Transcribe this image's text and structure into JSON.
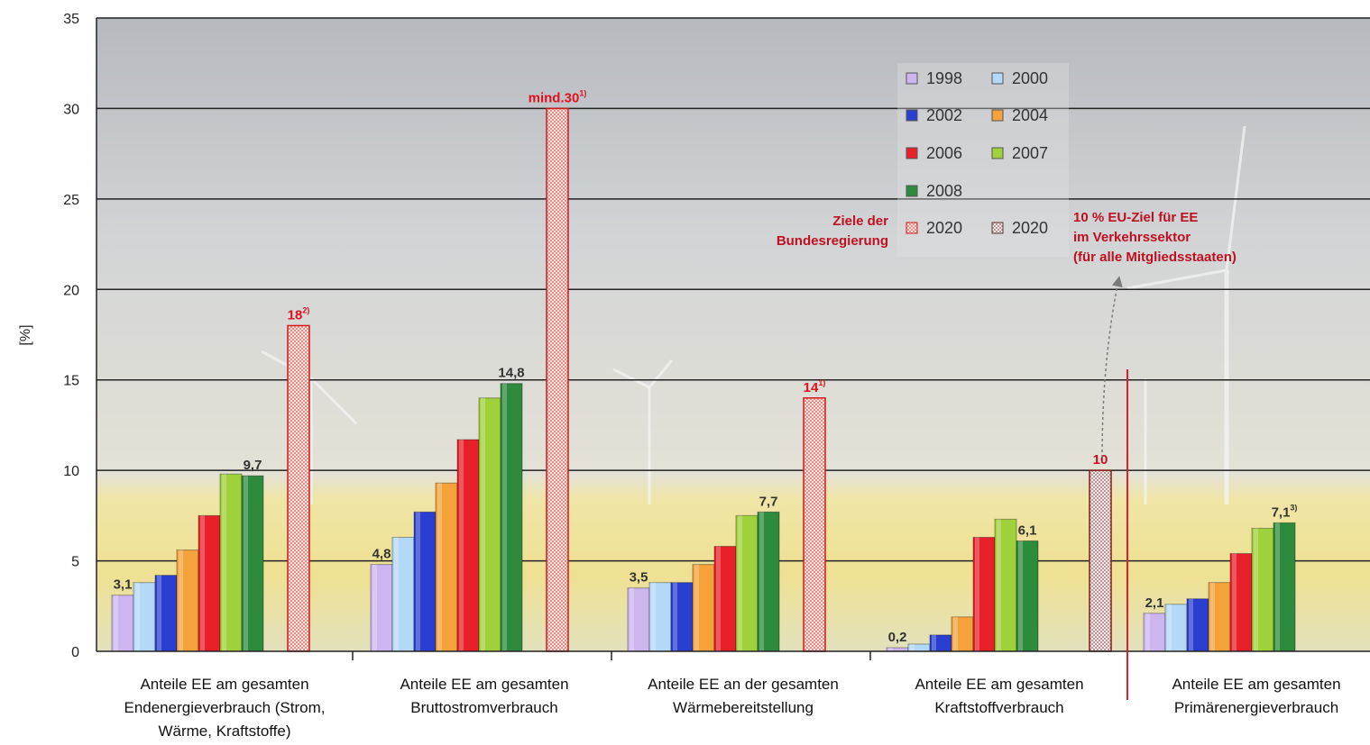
{
  "chart_data": {
    "type": "bar",
    "ylabel": "[%]",
    "ylim": [
      0,
      35
    ],
    "yticks": [
      0,
      5,
      10,
      15,
      20,
      25,
      30,
      35
    ],
    "grid": true,
    "legend_position": "top-right",
    "categories": [
      [
        "Anteile EE am gesamten",
        "Endenergieverbrauch (Strom,",
        "Wärme, Kraftstoffe)"
      ],
      [
        "Anteile EE am gesamten",
        "Bruttostromverbrauch"
      ],
      [
        "Anteile EE an der gesamten",
        "Wärmebereitstellung"
      ],
      [
        "Anteile EE am gesamten",
        "Kraftstoffverbrauch"
      ],
      [
        "Anteile EE am gesamten",
        "Primärenergieverbrauch"
      ]
    ],
    "series": [
      {
        "name": "1998",
        "color": "#cdb6f0",
        "values": [
          3.1,
          4.8,
          3.5,
          0.2,
          2.1
        ]
      },
      {
        "name": "2000",
        "color": "#b3d9f6",
        "values": [
          3.8,
          6.3,
          3.8,
          0.4,
          2.6
        ]
      },
      {
        "name": "2002",
        "color": "#2a3fd0",
        "values": [
          4.2,
          7.7,
          3.8,
          0.9,
          2.9
        ]
      },
      {
        "name": "2004",
        "color": "#f5a23a",
        "values": [
          5.6,
          9.3,
          4.8,
          1.9,
          3.8
        ]
      },
      {
        "name": "2006",
        "color": "#e8202a",
        "values": [
          7.5,
          11.7,
          5.8,
          6.3,
          5.4
        ]
      },
      {
        "name": "2007",
        "color": "#9fd13a",
        "values": [
          9.8,
          14.0,
          7.5,
          7.3,
          6.8
        ]
      },
      {
        "name": "2008",
        "color": "#2e8a3c",
        "values": [
          9.7,
          14.8,
          7.7,
          6.1,
          7.1
        ]
      },
      {
        "name": "2020",
        "color": "#f6c9c4",
        "values": [
          18,
          30,
          14,
          null,
          null
        ],
        "hatched": true
      },
      {
        "name": "2020",
        "color": "#efd9d9",
        "values": [
          null,
          null,
          null,
          10,
          null
        ],
        "hatched": true
      }
    ],
    "data_labels": [
      {
        "category": 0,
        "series": 0,
        "text": "3,1",
        "color": "#333333"
      },
      {
        "category": 0,
        "series": 6,
        "text": "9,7",
        "color": "#333333"
      },
      {
        "category": 0,
        "series": 7,
        "text": "18",
        "sup": "2)",
        "color": "#e01020"
      },
      {
        "category": 1,
        "series": 0,
        "text": "4,8",
        "color": "#333333"
      },
      {
        "category": 1,
        "series": 6,
        "text": "14,8",
        "color": "#333333"
      },
      {
        "category": 1,
        "series": 7,
        "text": "mind.30",
        "sup": "1)",
        "color": "#e01020"
      },
      {
        "category": 2,
        "series": 0,
        "text": "3,5",
        "color": "#333333"
      },
      {
        "category": 2,
        "series": 6,
        "text": "7,7",
        "color": "#333333"
      },
      {
        "category": 2,
        "series": 7,
        "text": "14",
        "sup": "1)",
        "color": "#e01020"
      },
      {
        "category": 3,
        "series": 0,
        "text": "0,2",
        "color": "#333333"
      },
      {
        "category": 3,
        "series": 6,
        "text": "6,1",
        "color": "#333333"
      },
      {
        "category": 3,
        "series": 8,
        "text": "10",
        "color": "#c01020"
      },
      {
        "category": 4,
        "series": 0,
        "text": "2,1",
        "color": "#333333"
      },
      {
        "category": 4,
        "series": 6,
        "text": "7,1",
        "sup": "3)",
        "color": "#333333"
      }
    ],
    "legend_note": [
      "Ziele der",
      "Bundesregierung"
    ],
    "annotation": {
      "lines": [
        "10 % EU-Ziel für EE",
        "im Verkehrssektor",
        "(für alle Mitgliedsstaaten)"
      ],
      "color": "#c01020"
    }
  },
  "colors": {
    "target_outline": "#d21a1a",
    "separator_red": "#e01e2e",
    "gridline": "#222222",
    "sky_top": "#b9bcc1",
    "field": "#efe49a"
  }
}
